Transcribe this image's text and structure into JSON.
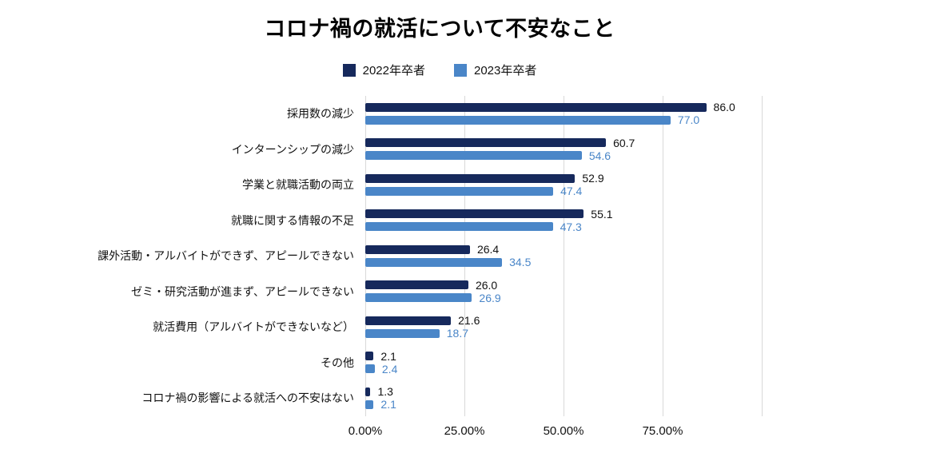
{
  "chart_data": {
    "type": "bar",
    "orientation": "horizontal",
    "title": "コロナ禍の就活について不安なこと",
    "categories": [
      "採用数の減少",
      "インターンシップの減少",
      "学業と就職活動の両立",
      "就職に関する情報の不足",
      "課外活動・アルバイトができず、アピールできない",
      "ゼミ・研究活動が進まず、アピールできない",
      "就活費用（アルバイトができないなど）",
      "その他",
      "コロナ禍の影響による就活への不安はない"
    ],
    "series": [
      {
        "name": "2022年卒者",
        "color": "#16295c",
        "value_color": "#111111",
        "values": [
          86.0,
          60.7,
          52.9,
          55.1,
          26.4,
          26.0,
          21.6,
          2.1,
          1.3
        ]
      },
      {
        "name": "2023年卒者",
        "color": "#4a86c8",
        "value_color": "#4a86c8",
        "values": [
          77.0,
          54.6,
          47.4,
          47.3,
          34.5,
          26.9,
          18.7,
          2.4,
          2.1
        ]
      }
    ],
    "xlim": [
      0,
      100
    ],
    "ticks": [
      {
        "value": 0,
        "label": "0.00%"
      },
      {
        "value": 25,
        "label": "25.00%"
      },
      {
        "value": 50,
        "label": "50.00%"
      },
      {
        "value": 75,
        "label": "75.00%"
      },
      {
        "value": 100,
        "label": ""
      }
    ],
    "grid": true,
    "legend_position": "top"
  }
}
